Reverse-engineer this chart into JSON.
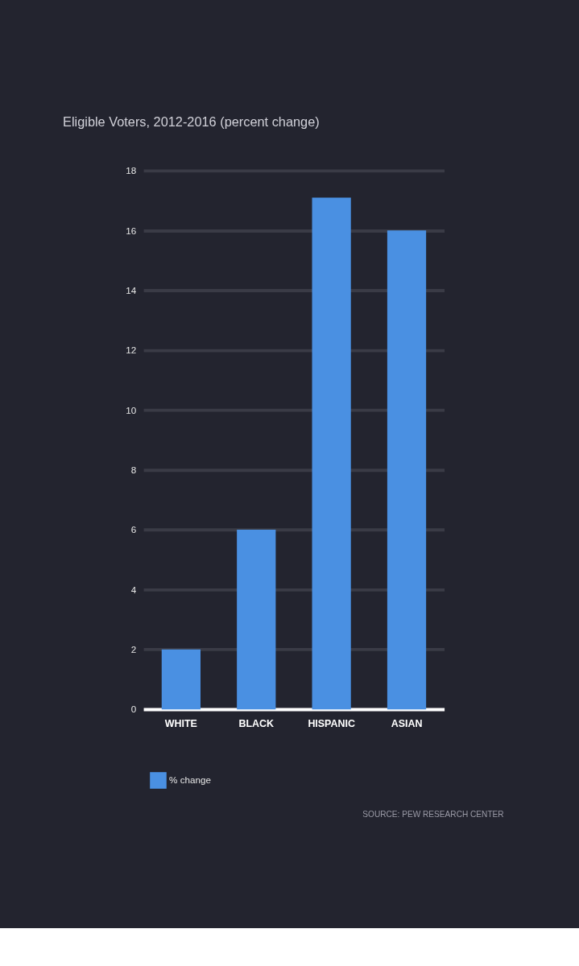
{
  "chart_data": {
    "type": "bar",
    "title": "Eligible Voters, 2012-2016 (percent change)",
    "categories": [
      "WHITE",
      "BLACK",
      "HISPANIC",
      "ASIAN"
    ],
    "series": [
      {
        "name": "% change",
        "color": "#4a90e2",
        "values": [
          2,
          6,
          17.1,
          16
        ]
      }
    ],
    "ylim": [
      0,
      18
    ],
    "yticks": [
      0,
      2,
      4,
      6,
      8,
      10,
      12,
      14,
      16,
      18
    ],
    "grid": "y",
    "legend": "bottom left",
    "annotations": [
      "SOURCE: PEW RESEARCH CENTER"
    ]
  }
}
